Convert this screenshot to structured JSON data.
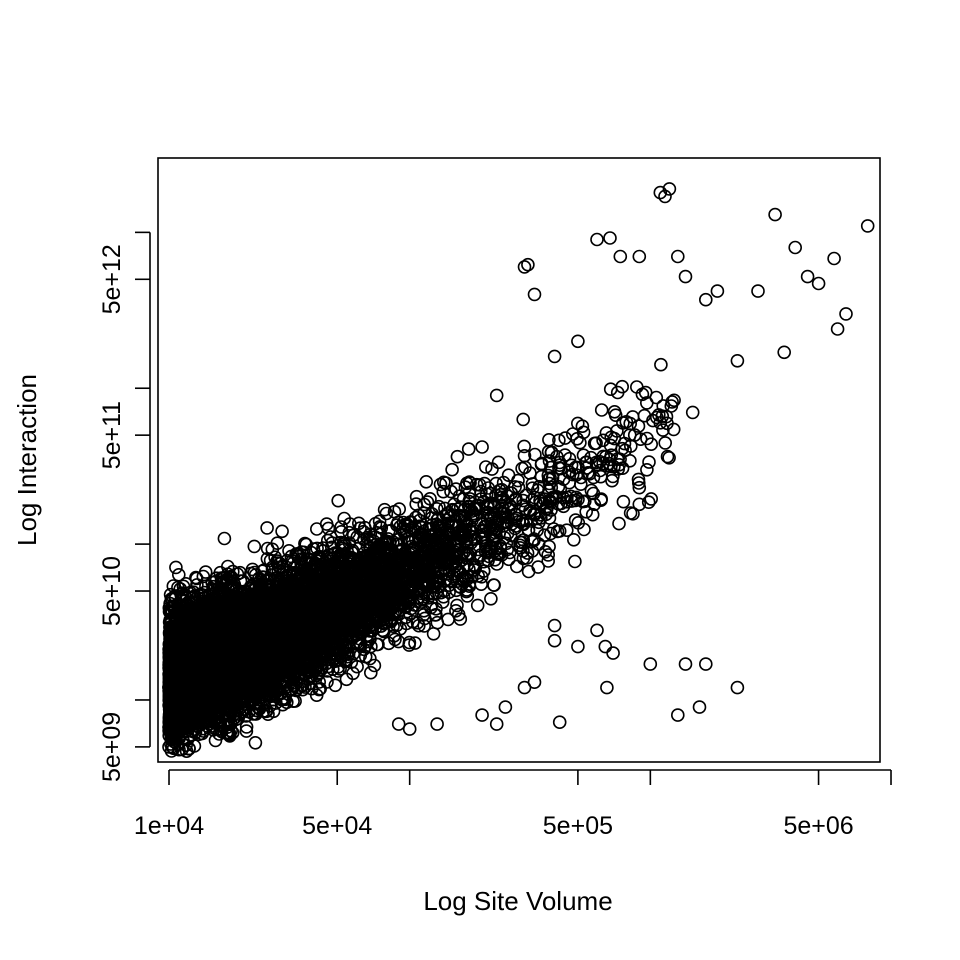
{
  "chart_data": {
    "type": "scatter",
    "title": "",
    "xlabel": "Log Site Volume",
    "ylabel": "Log Interaction",
    "x_scale": "log",
    "y_scale": "log",
    "xlim": [
      9000,
      9000000
    ],
    "ylim": [
      4000000000,
      30000000000000
    ],
    "x_ticks": [
      10000,
      50000,
      100000,
      500000,
      1000000,
      5000000,
      10000000
    ],
    "x_tick_labels": [
      "1e+04",
      "5e+04",
      "",
      "5e+05",
      "",
      "5e+06",
      ""
    ],
    "y_ticks": [
      5000000000,
      10000000000,
      50000000000,
      100000000000,
      500000000000,
      1000000000000,
      5000000000000,
      10000000000000
    ],
    "y_tick_labels": [
      "5e+09",
      "",
      "5e+10",
      "",
      "5e+11",
      "",
      "5e+12",
      ""
    ],
    "grid": false,
    "legend": "none",
    "marker": "open-circle",
    "point_count_estimate": 9000,
    "trend": {
      "description": "log-linear dense cloud",
      "points": [
        [
          10000,
          14000000000
        ],
        [
          50000,
          40000000000
        ],
        [
          100000,
          70000000000
        ],
        [
          500000,
          250000000000
        ],
        [
          5000000,
          2500000000000
        ]
      ]
    },
    "outliers": [
      [
        10000,
        5000000000
      ],
      [
        11000,
        4800000000
      ],
      [
        10500,
        14000000000
      ],
      [
        12000,
        24000000000
      ],
      [
        14000,
        28000000000
      ],
      [
        26000,
        60000000000
      ],
      [
        33000,
        70000000000
      ],
      [
        52000,
        120000000000
      ],
      [
        75000,
        140000000000
      ],
      [
        90000,
        7000000000
      ],
      [
        100000,
        6500000000
      ],
      [
        150000,
        300000000000
      ],
      [
        200000,
        420000000000
      ],
      [
        230000,
        900000000000
      ],
      [
        300000,
        6000000000000
      ],
      [
        310000,
        6200000000000
      ],
      [
        330000,
        4000000000000
      ],
      [
        400000,
        1600000000000
      ],
      [
        500000,
        2000000000000
      ],
      [
        600000,
        9000000000000
      ],
      [
        680000,
        9200000000000
      ],
      [
        750000,
        7000000000000
      ],
      [
        900000,
        7000000000000
      ],
      [
        1100000,
        18000000000000
      ],
      [
        1200000,
        19000000000000
      ],
      [
        1150000,
        17000000000000
      ],
      [
        1300000,
        7000000000000
      ],
      [
        1400000,
        5200000000000
      ],
      [
        1700000,
        3700000000000
      ],
      [
        1900000,
        4200000000000
      ],
      [
        2800000,
        4200000000000
      ],
      [
        3300000,
        13000000000000
      ],
      [
        4000000,
        8000000000000
      ],
      [
        4500000,
        5200000000000
      ],
      [
        5000000,
        4700000000000
      ],
      [
        5800000,
        6800000000000
      ],
      [
        6500000,
        3000000000000
      ],
      [
        8000000,
        11000000000000
      ],
      [
        6000000,
        2400000000000
      ],
      [
        3600000,
        1700000000000
      ],
      [
        2300000,
        1500000000000
      ],
      [
        1500000,
        700000000000
      ],
      [
        1100000,
        600000000000
      ],
      [
        900000,
        230000000000
      ],
      [
        900000,
        180000000000
      ],
      [
        600000,
        28000000000
      ],
      [
        700000,
        20000000000
      ],
      [
        400000,
        30000000000
      ],
      [
        400000,
        24000000000
      ],
      [
        330000,
        13000000000
      ],
      [
        300000,
        12000000000
      ],
      [
        500000,
        22000000000
      ],
      [
        660000,
        12000000000
      ],
      [
        250000,
        9000000000
      ],
      [
        230000,
        7000000000
      ],
      [
        130000,
        7000000000
      ],
      [
        200000,
        8000000000
      ],
      [
        420000,
        7200000000
      ],
      [
        650000,
        22000000000
      ],
      [
        1000000,
        17000000000
      ],
      [
        1400000,
        17000000000
      ],
      [
        1700000,
        17000000000
      ],
      [
        2300000,
        12000000000
      ],
      [
        1600000,
        9000000000
      ],
      [
        1300000,
        8000000000
      ]
    ]
  }
}
